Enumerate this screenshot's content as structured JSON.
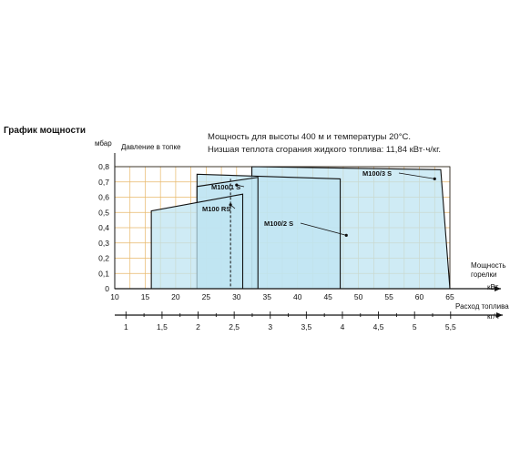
{
  "heading": "График мощности",
  "notes": [
    "Мощность для высоты 400 м и температуры 20°C.",
    "Низшая теплота сгорания жидкого топлива: 11,84 кВт·ч/кг."
  ],
  "chart_data": {
    "type": "area",
    "y_unit": "мбар",
    "ylabel": "Давление в топке",
    "x_label_lines": [
      "Мощность",
      "горелки"
    ],
    "x_unit": "кВт",
    "xlim": [
      10,
      65
    ],
    "ylim": [
      0,
      0.8
    ],
    "x_ticks": [
      10,
      15,
      20,
      25,
      30,
      35,
      40,
      45,
      50,
      55,
      60,
      65
    ],
    "x_tick_labels": [
      "10",
      "15",
      "20",
      "25",
      "30",
      "35",
      "40",
      "45",
      "50",
      "55",
      "60",
      "65"
    ],
    "y_ticks": [
      0,
      0.1,
      0.2,
      0.3,
      0.4,
      0.5,
      0.6,
      0.7,
      0.8
    ],
    "y_tick_labels": [
      "0",
      "0,1",
      "0,2",
      "0,3",
      "0,4",
      "0,5",
      "0,6",
      "0,7",
      "0,8"
    ],
    "grid": true,
    "fill_color": "#bfe4f2",
    "grid_color": "#e8b86a",
    "series": [
      {
        "name": "M100/3 S",
        "points": [
          [
            32.5,
            0
          ],
          [
            32.5,
            0.8
          ],
          [
            63.5,
            0.78
          ],
          [
            65,
            0
          ]
        ]
      },
      {
        "name": "M100/2 S",
        "points": [
          [
            23.5,
            0
          ],
          [
            23.5,
            0.75
          ],
          [
            47,
            0.72
          ],
          [
            47,
            0
          ]
        ]
      },
      {
        "name": "M100/1 S",
        "points": [
          [
            23.5,
            0
          ],
          [
            23.5,
            0.67
          ],
          [
            33.5,
            0.73
          ],
          [
            33.5,
            0
          ]
        ]
      },
      {
        "name": "M100 RS",
        "points": [
          [
            16,
            0
          ],
          [
            16,
            0.51
          ],
          [
            31,
            0.62
          ],
          [
            31,
            0
          ]
        ]
      }
    ],
    "annotations": [
      {
        "text": "M100/3 S",
        "point": [
          62.5,
          0.72
        ]
      },
      {
        "text": "M100/1 S",
        "point": [
          30,
          0.68
        ]
      },
      {
        "text": "M100 RS",
        "point": [
          29,
          0.55
        ]
      },
      {
        "text": "M100/2 S",
        "point": [
          48,
          0.35
        ]
      }
    ],
    "dashed_line_x": 29,
    "secondary_axis": {
      "label_lines": [
        "Расход топлива",
        "кг/ч"
      ],
      "ticks": [
        1,
        1.5,
        2,
        2.5,
        3,
        3.5,
        4,
        4.5,
        5,
        5.5
      ],
      "tick_labels": [
        "1",
        "1,5",
        "2",
        "2,5",
        "3",
        "3,5",
        "4",
        "4,5",
        "5",
        "5,5"
      ],
      "kw_per_unit": 11.84
    }
  }
}
